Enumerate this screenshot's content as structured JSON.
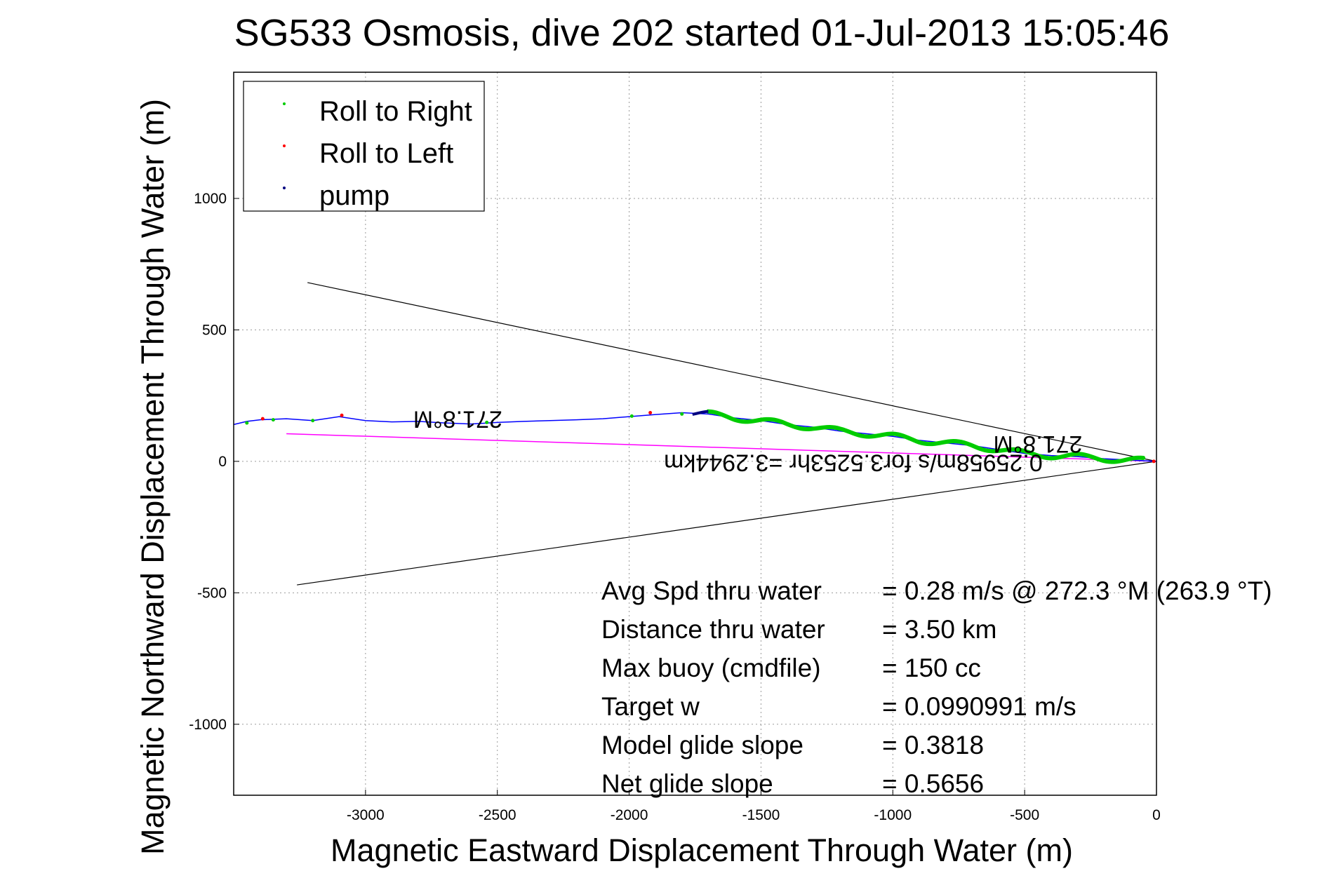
{
  "chart_data": {
    "type": "line",
    "title": "SG533 Osmosis, dive 202 started 01-Jul-2013 15:05:46",
    "xlabel": "Magnetic Eastward Displacement Through Water (m)",
    "ylabel": "Magnetic Northward Displacement Through Water (m)",
    "xlim": [
      -3500,
      0
    ],
    "ylim": [
      -1270,
      1480
    ],
    "x_ticks": [
      -3000,
      -2500,
      -2000,
      -1500,
      -1000,
      -500,
      0
    ],
    "y_ticks": [
      -1000,
      -500,
      0,
      500,
      1000
    ],
    "grid": true,
    "legend_placement": "top-left",
    "legend": [
      {
        "name": "Roll to Right",
        "color": "#00cc00"
      },
      {
        "name": "Roll to Left",
        "color": "#ff0000"
      },
      {
        "name": "pump",
        "color": "#000080"
      }
    ],
    "track": {
      "color": "#0000ff",
      "x": [
        0,
        -100,
        -200,
        -300,
        -400,
        -500,
        -600,
        -700,
        -800,
        -900,
        -1000,
        -1100,
        -1200,
        -1300,
        -1400,
        -1500,
        -1600,
        -1700,
        -1800,
        -1900,
        -2000,
        -2100,
        -2200,
        -2300,
        -2400,
        -2500,
        -2600,
        -2700,
        -2800,
        -2900,
        -3000,
        -3100,
        -3200,
        -3300,
        -3350,
        -3400,
        -3450,
        -3500
      ],
      "y": [
        0,
        5,
        10,
        18,
        22,
        30,
        45,
        60,
        70,
        80,
        95,
        105,
        115,
        130,
        140,
        155,
        165,
        180,
        185,
        178,
        170,
        162,
        158,
        155,
        152,
        148,
        142,
        146,
        152,
        150,
        155,
        170,
        155,
        162,
        160,
        158,
        152,
        140
      ]
    },
    "roll_right_segment": {
      "x_start": -1700,
      "x_end": -50
    },
    "pump_segment": {
      "x_start": -1760,
      "x_end": -1700
    },
    "markers_roll_right": {
      "x": [
        -3450,
        -3350,
        -3200,
        -2540,
        -1990,
        -1800
      ],
      "y": [
        146,
        158,
        155,
        148,
        172,
        180
      ]
    },
    "markers_roll_left": {
      "x": [
        -3390,
        -3090,
        -1920,
        -10
      ],
      "y": [
        162,
        175,
        185,
        0
      ]
    },
    "envelope_lines": [
      {
        "x": [
          -3220,
          0
        ],
        "y": [
          680,
          0
        ]
      },
      {
        "x": [
          -3260,
          0
        ],
        "y": [
          -470,
          0
        ]
      }
    ],
    "current_line": {
      "color": "#ff00ff",
      "x": [
        -3300,
        0
      ],
      "y": [
        105,
        0
      ]
    },
    "rotated_labels": [
      {
        "text": "271.8°M",
        "x": -2650,
        "y": 190
      },
      {
        "text": "271.8°M",
        "x": -450,
        "y": 95
      },
      {
        "text": "0.25958m/s for3.5253hr =3.2944km",
        "x": -1150,
        "y": 25
      }
    ],
    "stats": [
      {
        "label": "Avg Spd thru water",
        "value": "=  0.28 m/s @ 272.3 °M (263.9 °T)"
      },
      {
        "label": "Distance thru water",
        "value": "=  3.50 km"
      },
      {
        "label": "Max buoy (cmdfile)",
        "value": "= 150 cc"
      },
      {
        "label": "Target w",
        "value": "= 0.0990991 m/s"
      },
      {
        "label": "Model glide slope",
        "value": "= 0.3818"
      },
      {
        "label": "Net glide slope",
        "value": "= 0.5656"
      }
    ]
  }
}
